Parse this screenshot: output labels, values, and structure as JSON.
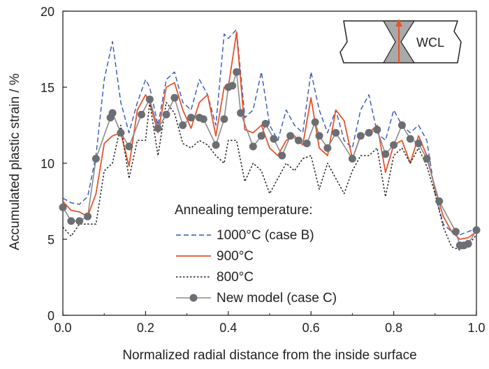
{
  "chart_data": {
    "type": "line",
    "title": "",
    "xlabel": "Normalized radial distance from the inside surface",
    "ylabel": "Accumulated plastic strain / %",
    "xlim": [
      0,
      1.0
    ],
    "ylim": [
      0,
      20
    ],
    "x_ticks": [
      "0.0",
      "0.2",
      "0.4",
      "0.6",
      "0.8",
      "1.0"
    ],
    "y_ticks": [
      "0",
      "5",
      "10",
      "15",
      "20"
    ],
    "grid": false,
    "legend_title": "Annealing temperature:",
    "legend_position": "bottom-center",
    "inset_label": "WCL",
    "colors": {
      "case_b": "#3355bb",
      "t900": "#e8532b",
      "t800": "#222222",
      "new_model": "#8a8a8a",
      "new_model_marker": "#6b6e72",
      "inset_weld": "#a9a9a9",
      "inset_arrow": "#e8532b"
    },
    "series": [
      {
        "name": "1000°C (case B)",
        "style": "dashed",
        "x": [
          0.0,
          0.02,
          0.04,
          0.06,
          0.08,
          0.1,
          0.12,
          0.14,
          0.16,
          0.18,
          0.2,
          0.21,
          0.23,
          0.25,
          0.27,
          0.29,
          0.31,
          0.33,
          0.35,
          0.37,
          0.39,
          0.4,
          0.42,
          0.44,
          0.46,
          0.48,
          0.5,
          0.52,
          0.54,
          0.56,
          0.58,
          0.6,
          0.62,
          0.64,
          0.66,
          0.68,
          0.7,
          0.72,
          0.74,
          0.76,
          0.78,
          0.8,
          0.82,
          0.84,
          0.86,
          0.88,
          0.9,
          0.92,
          0.94,
          0.96,
          0.98,
          1.0
        ],
        "y": [
          7.7,
          7.4,
          7.3,
          7.8,
          10.5,
          15.5,
          18.0,
          14.0,
          12.0,
          14.0,
          15.5,
          15.0,
          12.5,
          15.5,
          16.0,
          14.0,
          13.5,
          15.5,
          14.5,
          12.5,
          18.5,
          18.2,
          18.8,
          13.0,
          13.5,
          16.0,
          12.5,
          11.5,
          13.5,
          12.5,
          12.0,
          16.0,
          13.5,
          12.0,
          13.5,
          11.5,
          11.0,
          13.5,
          14.5,
          12.0,
          11.5,
          13.5,
          12.5,
          12.0,
          12.5,
          11.5,
          8.0,
          6.0,
          5.5,
          5.3,
          5.5,
          5.7
        ]
      },
      {
        "name": "900°C",
        "style": "solid",
        "x": [
          0.0,
          0.02,
          0.04,
          0.06,
          0.08,
          0.1,
          0.12,
          0.14,
          0.16,
          0.18,
          0.2,
          0.21,
          0.23,
          0.25,
          0.27,
          0.29,
          0.31,
          0.33,
          0.35,
          0.37,
          0.39,
          0.4,
          0.42,
          0.44,
          0.46,
          0.48,
          0.5,
          0.52,
          0.54,
          0.56,
          0.58,
          0.6,
          0.62,
          0.64,
          0.66,
          0.68,
          0.7,
          0.72,
          0.74,
          0.76,
          0.78,
          0.8,
          0.82,
          0.84,
          0.86,
          0.88,
          0.9,
          0.92,
          0.94,
          0.96,
          0.98,
          1.0
        ],
        "y": [
          7.5,
          6.9,
          6.8,
          6.5,
          8.0,
          11.3,
          11.8,
          12.0,
          9.8,
          13.5,
          14.5,
          14.0,
          12.0,
          15.0,
          15.3,
          13.5,
          12.3,
          14.0,
          14.5,
          11.8,
          15.0,
          15.0,
          18.6,
          12.2,
          12.0,
          12.5,
          11.0,
          10.5,
          11.5,
          11.8,
          11.2,
          14.3,
          11.0,
          10.5,
          13.5,
          12.8,
          10.3,
          11.8,
          12.0,
          12.5,
          9.4,
          11.2,
          11.5,
          10.0,
          11.8,
          10.5,
          8.3,
          6.5,
          5.5,
          5.0,
          5.1,
          5.5
        ]
      },
      {
        "name": "800°C",
        "style": "dotted",
        "x": [
          0.0,
          0.02,
          0.04,
          0.06,
          0.08,
          0.1,
          0.12,
          0.14,
          0.16,
          0.18,
          0.2,
          0.21,
          0.23,
          0.25,
          0.27,
          0.29,
          0.31,
          0.33,
          0.35,
          0.37,
          0.39,
          0.4,
          0.42,
          0.44,
          0.46,
          0.48,
          0.5,
          0.52,
          0.54,
          0.56,
          0.58,
          0.6,
          0.62,
          0.64,
          0.66,
          0.68,
          0.7,
          0.72,
          0.74,
          0.76,
          0.78,
          0.8,
          0.82,
          0.84,
          0.86,
          0.88,
          0.9,
          0.92,
          0.94,
          0.96,
          0.98,
          1.0
        ],
        "y": [
          5.8,
          5.2,
          6.0,
          6.0,
          6.0,
          9.5,
          10.0,
          12.5,
          9.0,
          11.5,
          11.5,
          14.0,
          10.5,
          14.0,
          13.3,
          11.3,
          11.0,
          11.5,
          11.2,
          10.5,
          10.0,
          11.5,
          11.5,
          8.8,
          10.0,
          9.5,
          8.0,
          9.0,
          10.0,
          9.5,
          10.3,
          10.5,
          8.3,
          10.0,
          9.0,
          8.0,
          9.5,
          10.5,
          10.5,
          11.0,
          7.8,
          10.5,
          11.0,
          10.0,
          11.0,
          9.8,
          8.0,
          5.8,
          4.5,
          4.3,
          4.6,
          5.3
        ]
      },
      {
        "name": "New model (case C)",
        "style": "marker",
        "x": [
          0.0,
          0.02,
          0.04,
          0.06,
          0.08,
          0.115,
          0.12,
          0.14,
          0.16,
          0.19,
          0.21,
          0.23,
          0.25,
          0.27,
          0.29,
          0.31,
          0.33,
          0.34,
          0.37,
          0.39,
          0.4,
          0.41,
          0.42,
          0.43,
          0.46,
          0.48,
          0.49,
          0.51,
          0.53,
          0.55,
          0.57,
          0.59,
          0.61,
          0.62,
          0.64,
          0.66,
          0.7,
          0.72,
          0.74,
          0.76,
          0.78,
          0.8,
          0.82,
          0.84,
          0.86,
          0.88,
          0.91,
          0.95,
          0.96,
          0.97,
          0.98,
          1.0
        ],
        "y": [
          7.1,
          6.2,
          6.2,
          6.5,
          10.3,
          13.0,
          13.3,
          12.0,
          11.1,
          13.2,
          14.2,
          12.3,
          13.2,
          14.3,
          12.5,
          13.0,
          13.0,
          12.9,
          11.2,
          12.9,
          15.0,
          15.1,
          16.0,
          13.3,
          11.1,
          11.8,
          12.6,
          11.6,
          10.5,
          11.8,
          11.5,
          11.3,
          12.7,
          11.8,
          11.0,
          12.0,
          10.3,
          11.8,
          12.0,
          12.2,
          10.6,
          11.2,
          12.5,
          11.6,
          11.3,
          10.3,
          7.5,
          5.5,
          4.6,
          4.6,
          4.7,
          5.6
        ]
      }
    ]
  }
}
